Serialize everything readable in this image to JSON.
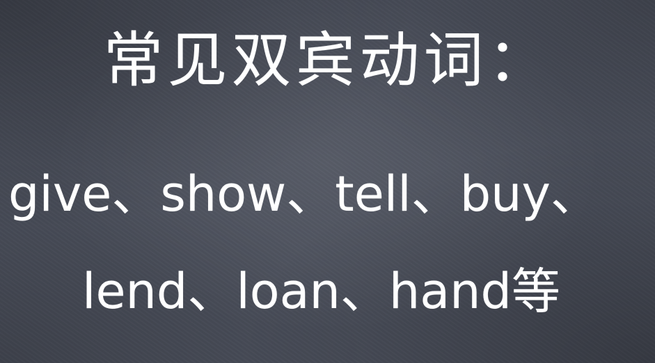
{
  "slide": {
    "title": "常见双宾动词：",
    "line1": "give、show、tell、buy、",
    "line2": "lend、loan、hand等"
  },
  "colors": {
    "background": "#4a4f5b",
    "text": "#ffffff"
  }
}
